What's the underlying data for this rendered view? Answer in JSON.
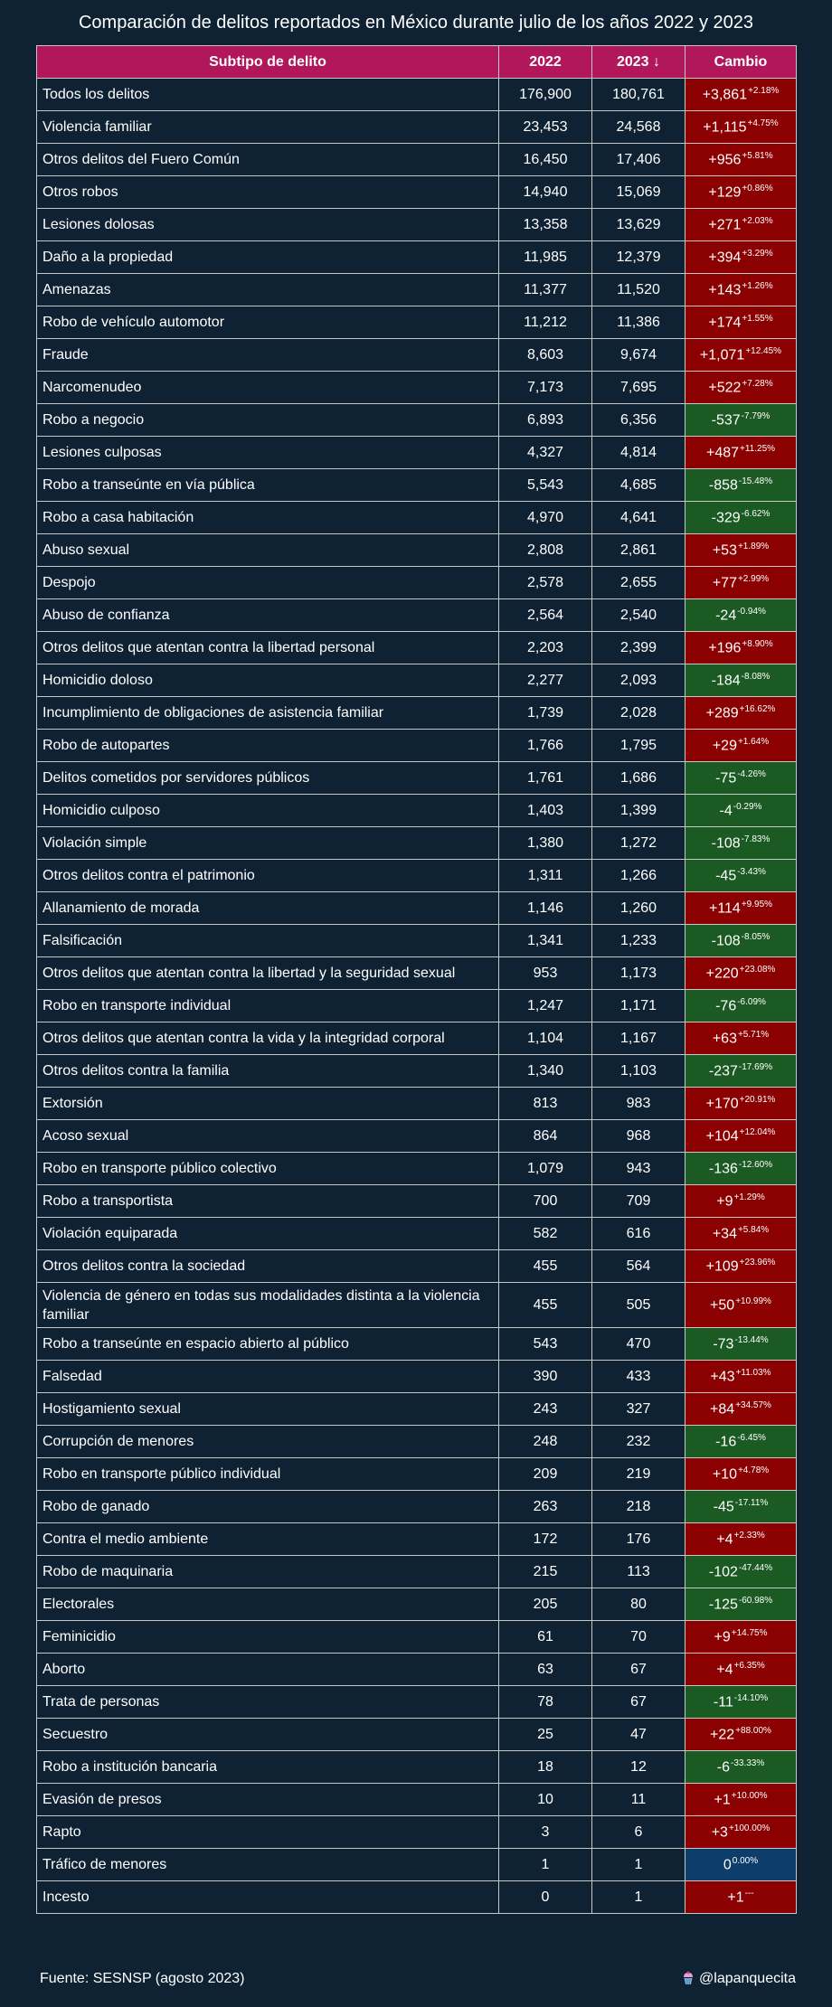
{
  "title": "Comparación de delitos reportados en México durante julio de los años 2022 y 2023",
  "headers": {
    "subtipo": "Subtipo de delito",
    "y2022": "2022",
    "y2023": "2023 ↓",
    "cambio": "Cambio"
  },
  "rows": [
    {
      "name": "Todos los delitos",
      "v2022": "176,900",
      "v2023": "180,761",
      "change": "+3,861",
      "pct": "+2.18%",
      "dir": "up"
    },
    {
      "name": "Violencia familiar",
      "v2022": "23,453",
      "v2023": "24,568",
      "change": "+1,115",
      "pct": "+4.75%",
      "dir": "up"
    },
    {
      "name": "Otros delitos del Fuero Común",
      "v2022": "16,450",
      "v2023": "17,406",
      "change": "+956",
      "pct": "+5.81%",
      "dir": "up"
    },
    {
      "name": "Otros robos",
      "v2022": "14,940",
      "v2023": "15,069",
      "change": "+129",
      "pct": "+0.86%",
      "dir": "up"
    },
    {
      "name": "Lesiones dolosas",
      "v2022": "13,358",
      "v2023": "13,629",
      "change": "+271",
      "pct": "+2.03%",
      "dir": "up"
    },
    {
      "name": "Daño a la propiedad",
      "v2022": "11,985",
      "v2023": "12,379",
      "change": "+394",
      "pct": "+3.29%",
      "dir": "up"
    },
    {
      "name": "Amenazas",
      "v2022": "11,377",
      "v2023": "11,520",
      "change": "+143",
      "pct": "+1.26%",
      "dir": "up"
    },
    {
      "name": "Robo de vehículo automotor",
      "v2022": "11,212",
      "v2023": "11,386",
      "change": "+174",
      "pct": "+1.55%",
      "dir": "up"
    },
    {
      "name": "Fraude",
      "v2022": "8,603",
      "v2023": "9,674",
      "change": "+1,071",
      "pct": "+12.45%",
      "dir": "up"
    },
    {
      "name": "Narcomenudeo",
      "v2022": "7,173",
      "v2023": "7,695",
      "change": "+522",
      "pct": "+7.28%",
      "dir": "up"
    },
    {
      "name": "Robo a negocio",
      "v2022": "6,893",
      "v2023": "6,356",
      "change": "-537",
      "pct": "-7.79%",
      "dir": "down"
    },
    {
      "name": "Lesiones culposas",
      "v2022": "4,327",
      "v2023": "4,814",
      "change": "+487",
      "pct": "+11.25%",
      "dir": "up"
    },
    {
      "name": "Robo a transeúnte en vía pública",
      "v2022": "5,543",
      "v2023": "4,685",
      "change": "-858",
      "pct": "-15.48%",
      "dir": "down"
    },
    {
      "name": "Robo a casa habitación",
      "v2022": "4,970",
      "v2023": "4,641",
      "change": "-329",
      "pct": "-6.62%",
      "dir": "down"
    },
    {
      "name": "Abuso sexual",
      "v2022": "2,808",
      "v2023": "2,861",
      "change": "+53",
      "pct": "+1.89%",
      "dir": "up"
    },
    {
      "name": "Despojo",
      "v2022": "2,578",
      "v2023": "2,655",
      "change": "+77",
      "pct": "+2.99%",
      "dir": "up"
    },
    {
      "name": "Abuso de confianza",
      "v2022": "2,564",
      "v2023": "2,540",
      "change": "-24",
      "pct": "-0.94%",
      "dir": "down"
    },
    {
      "name": "Otros delitos que atentan contra la libertad personal",
      "v2022": "2,203",
      "v2023": "2,399",
      "change": "+196",
      "pct": "+8.90%",
      "dir": "up"
    },
    {
      "name": "Homicidio doloso",
      "v2022": "2,277",
      "v2023": "2,093",
      "change": "-184",
      "pct": "-8.08%",
      "dir": "down"
    },
    {
      "name": "Incumplimiento de obligaciones de asistencia familiar",
      "v2022": "1,739",
      "v2023": "2,028",
      "change": "+289",
      "pct": "+16.62%",
      "dir": "up"
    },
    {
      "name": "Robo de autopartes",
      "v2022": "1,766",
      "v2023": "1,795",
      "change": "+29",
      "pct": "+1.64%",
      "dir": "up"
    },
    {
      "name": "Delitos cometidos por servidores públicos",
      "v2022": "1,761",
      "v2023": "1,686",
      "change": "-75",
      "pct": "-4.26%",
      "dir": "down"
    },
    {
      "name": "Homicidio culposo",
      "v2022": "1,403",
      "v2023": "1,399",
      "change": "-4",
      "pct": "-0.29%",
      "dir": "down"
    },
    {
      "name": "Violación simple",
      "v2022": "1,380",
      "v2023": "1,272",
      "change": "-108",
      "pct": "-7.83%",
      "dir": "down"
    },
    {
      "name": "Otros delitos contra el patrimonio",
      "v2022": "1,311",
      "v2023": "1,266",
      "change": "-45",
      "pct": "-3.43%",
      "dir": "down"
    },
    {
      "name": "Allanamiento de morada",
      "v2022": "1,146",
      "v2023": "1,260",
      "change": "+114",
      "pct": "+9.95%",
      "dir": "up"
    },
    {
      "name": "Falsificación",
      "v2022": "1,341",
      "v2023": "1,233",
      "change": "-108",
      "pct": "-8.05%",
      "dir": "down"
    },
    {
      "name": "Otros delitos que atentan contra la libertad y la seguridad sexual",
      "v2022": "953",
      "v2023": "1,173",
      "change": "+220",
      "pct": "+23.08%",
      "dir": "up"
    },
    {
      "name": "Robo en transporte individual",
      "v2022": "1,247",
      "v2023": "1,171",
      "change": "-76",
      "pct": "-6.09%",
      "dir": "down"
    },
    {
      "name": "Otros delitos que atentan contra la vida y la integridad corporal",
      "v2022": "1,104",
      "v2023": "1,167",
      "change": "+63",
      "pct": "+5.71%",
      "dir": "up"
    },
    {
      "name": "Otros delitos contra la familia",
      "v2022": "1,340",
      "v2023": "1,103",
      "change": "-237",
      "pct": "-17.69%",
      "dir": "down"
    },
    {
      "name": "Extorsión",
      "v2022": "813",
      "v2023": "983",
      "change": "+170",
      "pct": "+20.91%",
      "dir": "up"
    },
    {
      "name": "Acoso sexual",
      "v2022": "864",
      "v2023": "968",
      "change": "+104",
      "pct": "+12.04%",
      "dir": "up"
    },
    {
      "name": "Robo en transporte público colectivo",
      "v2022": "1,079",
      "v2023": "943",
      "change": "-136",
      "pct": "-12.60%",
      "dir": "down"
    },
    {
      "name": "Robo a transportista",
      "v2022": "700",
      "v2023": "709",
      "change": "+9",
      "pct": "+1.29%",
      "dir": "up"
    },
    {
      "name": "Violación equiparada",
      "v2022": "582",
      "v2023": "616",
      "change": "+34",
      "pct": "+5.84%",
      "dir": "up"
    },
    {
      "name": "Otros delitos contra la sociedad",
      "v2022": "455",
      "v2023": "564",
      "change": "+109",
      "pct": "+23.96%",
      "dir": "up"
    },
    {
      "name": "Violencia de género en todas sus modalidades distinta a la violencia familiar",
      "v2022": "455",
      "v2023": "505",
      "change": "+50",
      "pct": "+10.99%",
      "dir": "up",
      "tall": true
    },
    {
      "name": "Robo a transeúnte en espacio abierto al público",
      "v2022": "543",
      "v2023": "470",
      "change": "-73",
      "pct": "-13.44%",
      "dir": "down"
    },
    {
      "name": "Falsedad",
      "v2022": "390",
      "v2023": "433",
      "change": "+43",
      "pct": "+11.03%",
      "dir": "up"
    },
    {
      "name": "Hostigamiento sexual",
      "v2022": "243",
      "v2023": "327",
      "change": "+84",
      "pct": "+34.57%",
      "dir": "up"
    },
    {
      "name": "Corrupción de menores",
      "v2022": "248",
      "v2023": "232",
      "change": "-16",
      "pct": "-6.45%",
      "dir": "down"
    },
    {
      "name": "Robo en transporte público individual",
      "v2022": "209",
      "v2023": "219",
      "change": "+10",
      "pct": "+4.78%",
      "dir": "up"
    },
    {
      "name": "Robo de ganado",
      "v2022": "263",
      "v2023": "218",
      "change": "-45",
      "pct": "-17.11%",
      "dir": "down"
    },
    {
      "name": "Contra el medio ambiente",
      "v2022": "172",
      "v2023": "176",
      "change": "+4",
      "pct": "+2.33%",
      "dir": "up"
    },
    {
      "name": "Robo de maquinaria",
      "v2022": "215",
      "v2023": "113",
      "change": "-102",
      "pct": "-47.44%",
      "dir": "down"
    },
    {
      "name": "Electorales",
      "v2022": "205",
      "v2023": "80",
      "change": "-125",
      "pct": "-60.98%",
      "dir": "down"
    },
    {
      "name": "Feminicidio",
      "v2022": "61",
      "v2023": "70",
      "change": "+9",
      "pct": "+14.75%",
      "dir": "up"
    },
    {
      "name": "Aborto",
      "v2022": "63",
      "v2023": "67",
      "change": "+4",
      "pct": "+6.35%",
      "dir": "up"
    },
    {
      "name": "Trata de personas",
      "v2022": "78",
      "v2023": "67",
      "change": "-11",
      "pct": "-14.10%",
      "dir": "down"
    },
    {
      "name": "Secuestro",
      "v2022": "25",
      "v2023": "47",
      "change": "+22",
      "pct": "+88.00%",
      "dir": "up"
    },
    {
      "name": "Robo a institución bancaria",
      "v2022": "18",
      "v2023": "12",
      "change": "-6",
      "pct": "-33.33%",
      "dir": "down"
    },
    {
      "name": "Evasión de presos",
      "v2022": "10",
      "v2023": "11",
      "change": "+1",
      "pct": "+10.00%",
      "dir": "up"
    },
    {
      "name": "Rapto",
      "v2022": "3",
      "v2023": "6",
      "change": "+3",
      "pct": "+100.00%",
      "dir": "up"
    },
    {
      "name": "Tráfico de menores",
      "v2022": "1",
      "v2023": "1",
      "change": "0",
      "pct": "0.00%",
      "dir": "zero"
    },
    {
      "name": "Incesto",
      "v2022": "0",
      "v2023": "1",
      "change": "+1",
      "pct": "---",
      "dir": "up"
    }
  ],
  "footer": {
    "source": "Fuente: SESNSP (agosto 2023)",
    "handle": "@lapanquecita"
  },
  "colors": {
    "background": "#0e2233",
    "header": "#b1185b",
    "increase": "#8b0000",
    "decrease": "#1c5a24",
    "neutral": "#0c3d6b"
  },
  "icons": {
    "handle_icon": "cupcake-icon"
  }
}
